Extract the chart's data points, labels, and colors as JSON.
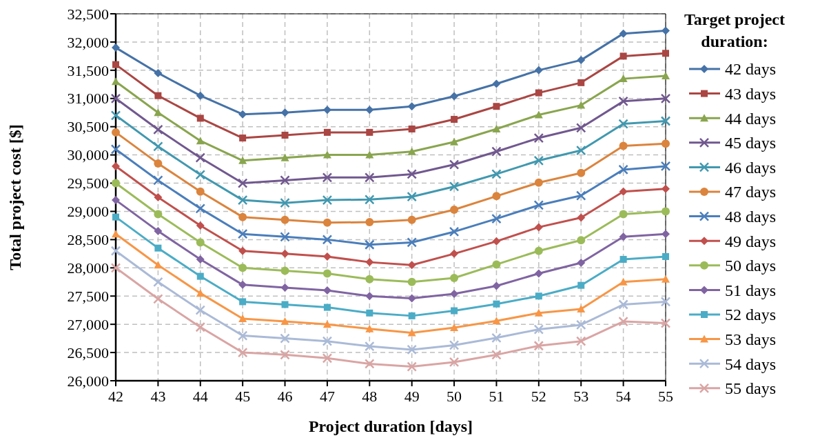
{
  "chart_data": {
    "type": "line",
    "xlabel": "Project duration [days]",
    "ylabel": "Total project cost [$]",
    "legend_title": "Target project duration:",
    "legend": "right",
    "grid": true,
    "line_style": "solid",
    "x": [
      42,
      43,
      44,
      45,
      46,
      47,
      48,
      49,
      50,
      51,
      52,
      53,
      54,
      55
    ],
    "xlim": [
      42,
      55
    ],
    "xticks": [
      42,
      43,
      44,
      45,
      46,
      47,
      48,
      49,
      50,
      51,
      52,
      53,
      54,
      55
    ],
    "ylim": [
      26000,
      32500
    ],
    "yticks": [
      {
        "value": 26000,
        "label": "26,000"
      },
      {
        "value": 26500,
        "label": "26,500"
      },
      {
        "value": 27000,
        "label": "27,000"
      },
      {
        "value": 27500,
        "label": "27,500"
      },
      {
        "value": 28000,
        "label": "28,000"
      },
      {
        "value": 28500,
        "label": "28,500"
      },
      {
        "value": 29000,
        "label": "29,000"
      },
      {
        "value": 29500,
        "label": "29,500"
      },
      {
        "value": 30000,
        "label": "30,000"
      },
      {
        "value": 30500,
        "label": "30,500"
      },
      {
        "value": 31000,
        "label": "31,000"
      },
      {
        "value": 31500,
        "label": "31,500"
      },
      {
        "value": 32000,
        "label": "32,000"
      },
      {
        "value": 32500,
        "label": "32,500"
      }
    ],
    "series": [
      {
        "name": "42 days",
        "color": "#4572a7",
        "marker": "diamond",
        "values": [
          31900,
          31450,
          31050,
          30720,
          30750,
          30800,
          30800,
          30860,
          31040,
          31260,
          31500,
          31680,
          32150,
          32200
        ]
      },
      {
        "name": "43 days",
        "color": "#aa4643",
        "marker": "square",
        "values": [
          31600,
          31050,
          30650,
          30300,
          30350,
          30400,
          30400,
          30460,
          30630,
          30860,
          31100,
          31280,
          31750,
          31800
        ]
      },
      {
        "name": "44 days",
        "color": "#89a54e",
        "marker": "triangle",
        "values": [
          31300,
          30750,
          30250,
          29900,
          29950,
          30000,
          30000,
          30060,
          30230,
          30460,
          30710,
          30880,
          31350,
          31400
        ]
      },
      {
        "name": "45 days",
        "color": "#71588f",
        "marker": "cross",
        "values": [
          31000,
          30450,
          29950,
          29500,
          29550,
          29600,
          29600,
          29660,
          29830,
          30060,
          30300,
          30480,
          30950,
          31000
        ]
      },
      {
        "name": "46 days",
        "color": "#4198af",
        "marker": "cross",
        "values": [
          30700,
          30150,
          29650,
          29200,
          29150,
          29200,
          29210,
          29260,
          29440,
          29660,
          29900,
          30080,
          30550,
          30600
        ]
      },
      {
        "name": "47 days",
        "color": "#db843d",
        "marker": "circle",
        "values": [
          30400,
          29850,
          29350,
          28900,
          28850,
          28800,
          28810,
          28850,
          29030,
          29270,
          29510,
          29680,
          30160,
          30200
        ]
      },
      {
        "name": "48 days",
        "color": "#4a7ebb",
        "marker": "cross",
        "values": [
          30100,
          29550,
          29050,
          28600,
          28550,
          28500,
          28410,
          28450,
          28640,
          28870,
          29110,
          29280,
          29740,
          29800
        ]
      },
      {
        "name": "49 days",
        "color": "#c0504d",
        "marker": "diamond",
        "values": [
          29800,
          29250,
          28750,
          28300,
          28250,
          28200,
          28100,
          28050,
          28250,
          28470,
          28720,
          28890,
          29350,
          29400
        ]
      },
      {
        "name": "50 days",
        "color": "#9bbb59",
        "marker": "circle",
        "values": [
          29500,
          28950,
          28450,
          28000,
          27950,
          27900,
          27800,
          27750,
          27820,
          28060,
          28300,
          28490,
          28950,
          29000
        ]
      },
      {
        "name": "51 days",
        "color": "#8064a2",
        "marker": "diamond",
        "values": [
          29200,
          28650,
          28150,
          27700,
          27650,
          27600,
          27500,
          27460,
          27540,
          27680,
          27900,
          28090,
          28550,
          28600
        ]
      },
      {
        "name": "52 days",
        "color": "#4bacc6",
        "marker": "square",
        "values": [
          28900,
          28350,
          27850,
          27400,
          27350,
          27300,
          27200,
          27150,
          27240,
          27360,
          27500,
          27690,
          28150,
          28200
        ]
      },
      {
        "name": "53 days",
        "color": "#f79646",
        "marker": "triangle",
        "values": [
          28600,
          28050,
          27550,
          27100,
          27050,
          27000,
          26920,
          26850,
          26940,
          27060,
          27200,
          27270,
          27750,
          27800
        ]
      },
      {
        "name": "54 days",
        "color": "#aabad7",
        "marker": "cross",
        "values": [
          28300,
          27750,
          27250,
          26800,
          26750,
          26700,
          26610,
          26550,
          26630,
          26760,
          26910,
          26990,
          27350,
          27400
        ]
      },
      {
        "name": "55 days",
        "color": "#d9a5a4",
        "marker": "cross",
        "values": [
          28000,
          27450,
          26950,
          26500,
          26460,
          26400,
          26300,
          26250,
          26330,
          26460,
          26620,
          26700,
          27050,
          27020
        ]
      }
    ]
  }
}
